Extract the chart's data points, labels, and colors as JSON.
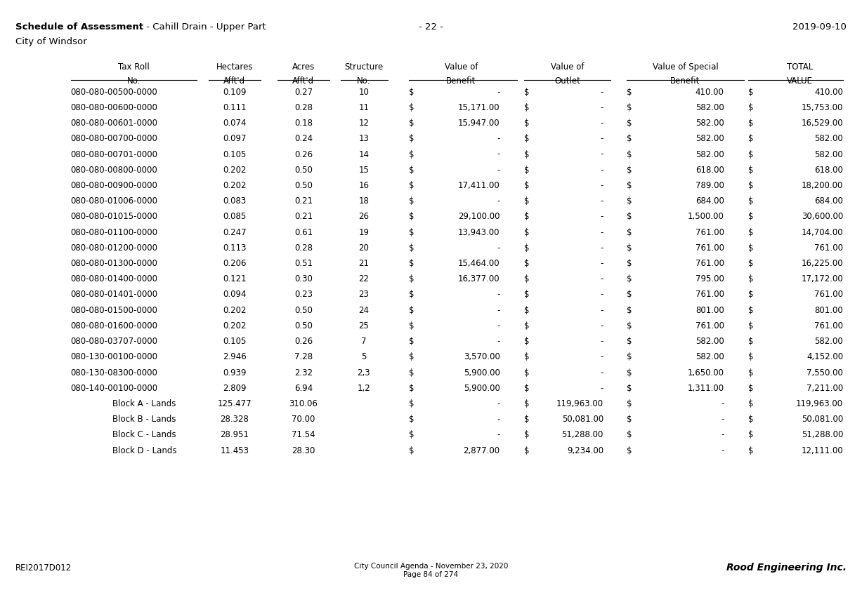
{
  "title_bold": "Schedule of Assessment",
  "title_regular": " - Cahill Drain - Upper Part",
  "page_number": "- 22 -",
  "date": "2019-09-10",
  "subtitle": "City of Windsor",
  "footer_left": "REI2017D012",
  "footer_center_line1": "City Council Agenda - November 23, 2020",
  "footer_center_line2": "Page 84 of 274",
  "footer_right": "Rood Engineering Inc.",
  "rows": [
    [
      "080-080-00500-0000",
      "0.109",
      "0.27",
      "10",
      "$",
      "-",
      "$",
      "-",
      "$",
      "410.00",
      "$",
      "410.00"
    ],
    [
      "080-080-00600-0000",
      "0.111",
      "0.28",
      "11",
      "$",
      "15,171.00",
      "$",
      "-",
      "$",
      "582.00",
      "$",
      "15,753.00"
    ],
    [
      "080-080-00601-0000",
      "0.074",
      "0.18",
      "12",
      "$",
      "15,947.00",
      "$",
      "-",
      "$",
      "582.00",
      "$",
      "16,529.00"
    ],
    [
      "080-080-00700-0000",
      "0.097",
      "0.24",
      "13",
      "$",
      "-",
      "$",
      "-",
      "$",
      "582.00",
      "$",
      "582.00"
    ],
    [
      "080-080-00701-0000",
      "0.105",
      "0.26",
      "14",
      "$",
      "-",
      "$",
      "-",
      "$",
      "582.00",
      "$",
      "582.00"
    ],
    [
      "080-080-00800-0000",
      "0.202",
      "0.50",
      "15",
      "$",
      "-",
      "$",
      "-",
      "$",
      "618.00",
      "$",
      "618.00"
    ],
    [
      "080-080-00900-0000",
      "0.202",
      "0.50",
      "16",
      "$",
      "17,411.00",
      "$",
      "-",
      "$",
      "789.00",
      "$",
      "18,200.00"
    ],
    [
      "080-080-01006-0000",
      "0.083",
      "0.21",
      "18",
      "$",
      "-",
      "$",
      "-",
      "$",
      "684.00",
      "$",
      "684.00"
    ],
    [
      "080-080-01015-0000",
      "0.085",
      "0.21",
      "26",
      "$",
      "29,100.00",
      "$",
      "-",
      "$",
      "1,500.00",
      "$",
      "30,600.00"
    ],
    [
      "080-080-01100-0000",
      "0.247",
      "0.61",
      "19",
      "$",
      "13,943.00",
      "$",
      "-",
      "$",
      "761.00",
      "$",
      "14,704.00"
    ],
    [
      "080-080-01200-0000",
      "0.113",
      "0.28",
      "20",
      "$",
      "-",
      "$",
      "-",
      "$",
      "761.00",
      "$",
      "761.00"
    ],
    [
      "080-080-01300-0000",
      "0.206",
      "0.51",
      "21",
      "$",
      "15,464.00",
      "$",
      "-",
      "$",
      "761.00",
      "$",
      "16,225.00"
    ],
    [
      "080-080-01400-0000",
      "0.121",
      "0.30",
      "22",
      "$",
      "16,377.00",
      "$",
      "-",
      "$",
      "795.00",
      "$",
      "17,172.00"
    ],
    [
      "080-080-01401-0000",
      "0.094",
      "0.23",
      "23",
      "$",
      "-",
      "$",
      "-",
      "$",
      "761.00",
      "$",
      "761.00"
    ],
    [
      "080-080-01500-0000",
      "0.202",
      "0.50",
      "24",
      "$",
      "-",
      "$",
      "-",
      "$",
      "801.00",
      "$",
      "801.00"
    ],
    [
      "080-080-01600-0000",
      "0.202",
      "0.50",
      "25",
      "$",
      "-",
      "$",
      "-",
      "$",
      "761.00",
      "$",
      "761.00"
    ],
    [
      "080-080-03707-0000",
      "0.105",
      "0.26",
      "7",
      "$",
      "-",
      "$",
      "-",
      "$",
      "582.00",
      "$",
      "582.00"
    ],
    [
      "080-130-00100-0000",
      "2.946",
      "7.28",
      "5",
      "$",
      "3,570.00",
      "$",
      "-",
      "$",
      "582.00",
      "$",
      "4,152.00"
    ],
    [
      "080-130-08300-0000",
      "0.939",
      "2.32",
      "2,3",
      "$",
      "5,900.00",
      "$",
      "-",
      "$",
      "1,650.00",
      "$",
      "7,550.00"
    ],
    [
      "080-140-00100-0000",
      "2.809",
      "6.94",
      "1,2",
      "$",
      "5,900.00",
      "$",
      "-",
      "$",
      "1,311.00",
      "$",
      "7,211.00"
    ],
    [
      "Block A - Lands",
      "125.477",
      "310.06",
      "",
      "$",
      "-",
      "$",
      "119,963.00",
      "$",
      "-",
      "$",
      "119,963.00"
    ],
    [
      "Block B - Lands",
      "28.328",
      "70.00",
      "",
      "$",
      "-",
      "$",
      "50,081.00",
      "$",
      "-",
      "$",
      "50,081.00"
    ],
    [
      "Block C - Lands",
      "28.951",
      "71.54",
      "",
      "$",
      "-",
      "$",
      "51,288.00",
      "$",
      "-",
      "$",
      "51,288.00"
    ],
    [
      "Block D - Lands",
      "11.453",
      "28.30",
      "",
      "$",
      "2,877.00",
      "$",
      "9,234.00",
      "$",
      "-",
      "$",
      "12,111.00"
    ]
  ]
}
